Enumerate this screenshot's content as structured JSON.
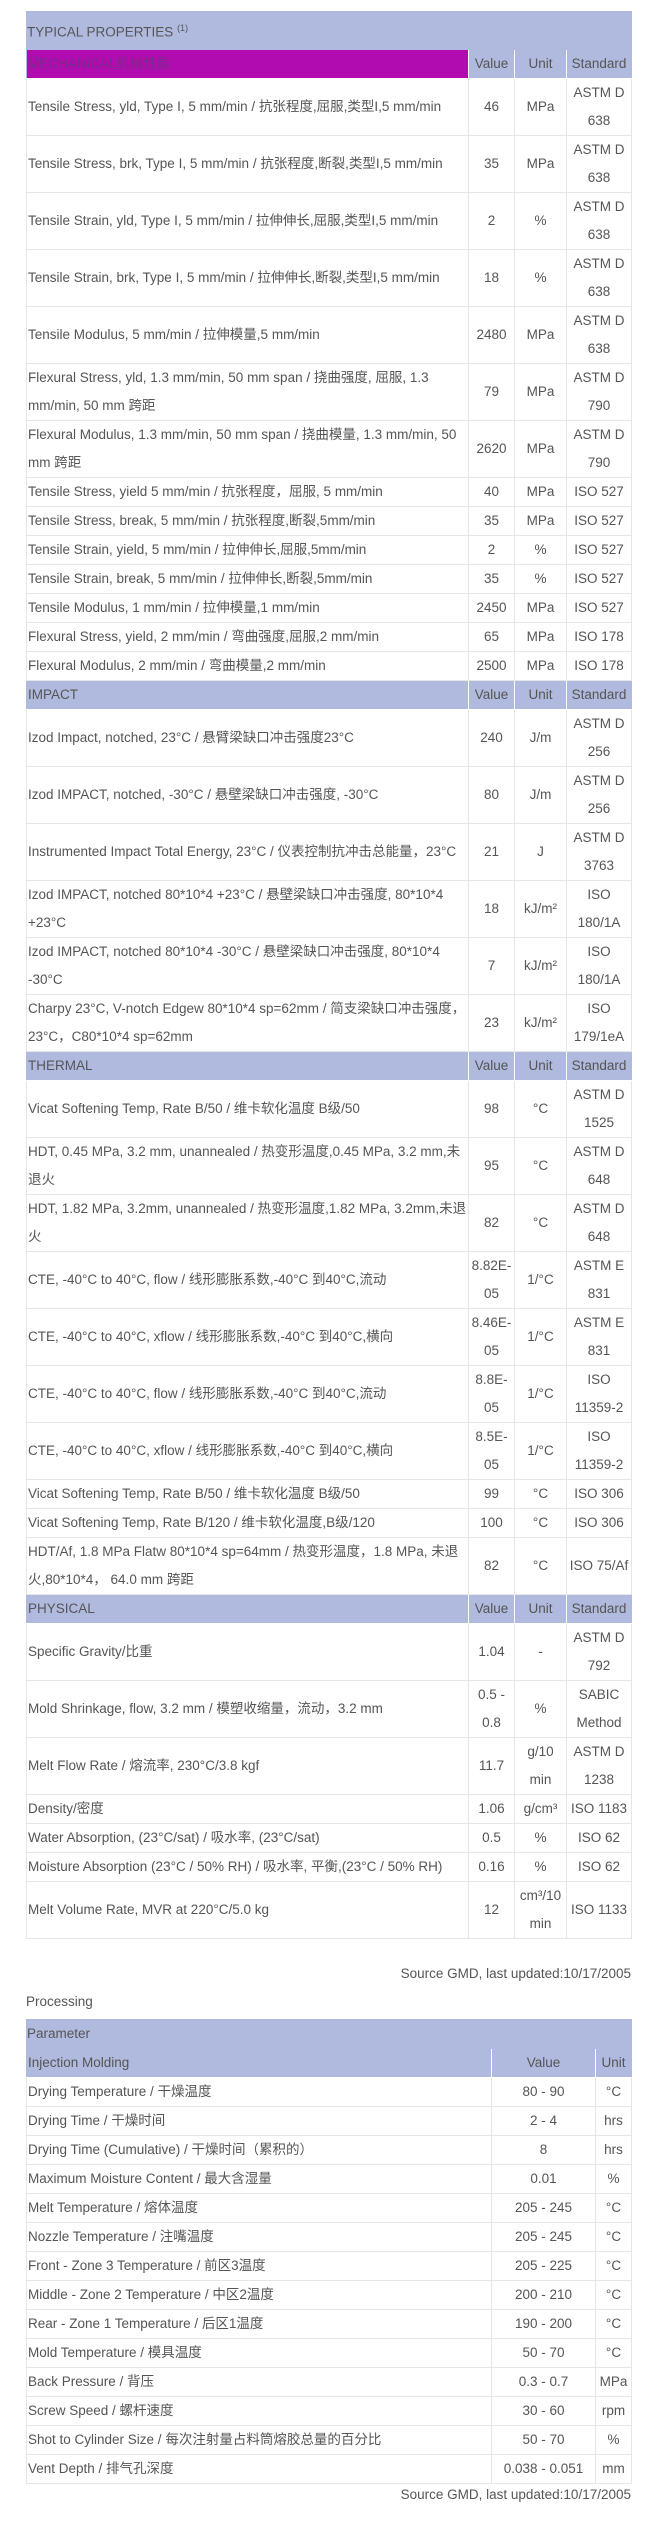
{
  "properties": {
    "title": "TYPICAL PROPERTIES",
    "title_sup": "(1)",
    "sections": [
      {
        "name": "MECHANICAL机械性能",
        "highlight": "#b10cb0",
        "col_value": "Value",
        "col_unit": "Unit",
        "col_standard": "Standard",
        "rows": [
          [
            "Tensile Stress, yld, Type I, 5 mm/min / 抗张程度,屈服,类型I,5 mm/min",
            "46",
            "MPa",
            "ASTM D 638"
          ],
          [
            "Tensile Stress, brk, Type I, 5 mm/min / 抗张程度,断裂,类型I,5 mm/min",
            "35",
            "MPa",
            "ASTM D 638"
          ],
          [
            "Tensile Strain, yld, Type I, 5 mm/min / 拉伸伸长,屈服,类型I,5 mm/min",
            "2",
            "%",
            "ASTM D 638"
          ],
          [
            "Tensile Strain, brk, Type I, 5 mm/min / 拉伸伸长,断裂,类型I,5 mm/min",
            "18",
            "%",
            "ASTM D 638"
          ],
          [
            "Tensile Modulus, 5 mm/min / 拉伸模量,5 mm/min",
            "2480",
            "MPa",
            "ASTM D 638"
          ],
          [
            "Flexural Stress, yld, 1.3 mm/min, 50 mm span / 挠曲强度, 屈服, 1.3 mm/min, 50 mm 跨距",
            "79",
            "MPa",
            "ASTM D 790"
          ],
          [
            "Flexural Modulus, 1.3 mm/min, 50 mm span / 挠曲模量, 1.3 mm/min, 50 mm 跨距",
            "2620",
            "MPa",
            "ASTM D 790"
          ],
          [
            "Tensile Stress, yield 5 mm/min / 抗张程度，屈服, 5 mm/min",
            "40",
            "MPa",
            "ISO 527"
          ],
          [
            "Tensile Stress, break, 5 mm/min / 抗张程度,断裂,5mm/min",
            "35",
            "MPa",
            "ISO 527"
          ],
          [
            "Tensile Strain, yield, 5 mm/min / 拉伸伸长,屈服,5mm/min",
            "2",
            "%",
            "ISO 527"
          ],
          [
            "Tensile Strain, break, 5 mm/min / 拉伸伸长,断裂,5mm/min",
            "35",
            "%",
            "ISO 527"
          ],
          [
            "Tensile Modulus, 1 mm/min / 拉伸模量,1 mm/min",
            "2450",
            "MPa",
            "ISO 527"
          ],
          [
            "Flexural Stress, yield, 2 mm/min / 弯曲强度,屈服,2 mm/min",
            "65",
            "MPa",
            "ISO 178"
          ],
          [
            "Flexural Modulus, 2 mm/min / 弯曲模量,2 mm/min",
            "2500",
            "MPa",
            "ISO 178"
          ]
        ]
      },
      {
        "name": "IMPACT",
        "col_value": "Value",
        "col_unit": "Unit",
        "col_standard": "Standard",
        "rows": [
          [
            "Izod Impact, notched, 23°C / 悬臂梁缺口冲击强度23°C",
            "240",
            "J/m",
            "ASTM D 256"
          ],
          [
            "Izod IMPACT, notched, -30°C / 悬壁梁缺口冲击强度, -30°C",
            "80",
            "J/m",
            "ASTM D 256"
          ],
          [
            "Instrumented Impact Total Energy, 23°C / 仪表控制抗冲击总能量，23°C",
            "21",
            "J",
            "ASTM D 3763"
          ],
          [
            "Izod IMPACT, notched 80*10*4 +23°C / 悬壁梁缺口冲击强度, 80*10*4 +23°C",
            "18",
            "kJ/m²",
            "ISO 180/1A"
          ],
          [
            "Izod IMPACT, notched 80*10*4 -30°C / 悬壁梁缺口冲击强度, 80*10*4 -30°C",
            "7",
            "kJ/m²",
            "ISO 180/1A"
          ],
          [
            "Charpy 23°C, V-notch Edgew 80*10*4 sp=62mm / 简支梁缺口冲击强度，23°C，C80*10*4 sp=62mm",
            "23",
            "kJ/m²",
            "ISO 179/1eA"
          ]
        ]
      },
      {
        "name": "THERMAL",
        "col_value": "Value",
        "col_unit": "Unit",
        "col_standard": "Standard",
        "rows": [
          [
            "Vicat Softening Temp, Rate B/50 / 维卡软化温度 B级/50",
            "98",
            "°C",
            "ASTM D 1525"
          ],
          [
            "HDT, 0.45 MPa, 3.2 mm, unannealed / 热变形温度,0.45 MPa, 3.2 mm,未退火",
            "95",
            "°C",
            "ASTM D 648"
          ],
          [
            "HDT, 1.82 MPa, 3.2mm, unannealed / 热变形温度,1.82 MPa, 3.2mm,未退火",
            "82",
            "°C",
            "ASTM D 648"
          ],
          [
            "CTE, -40°C to 40°C, flow / 线形膨胀系数,-40°C 到40°C,流动",
            "8.82E-05",
            "1/°C",
            "ASTM E 831"
          ],
          [
            "CTE, -40°C to 40°C, xflow / 线形膨胀系数,-40°C 到40°C,横向",
            "8.46E-05",
            "1/°C",
            "ASTM E 831"
          ],
          [
            "CTE, -40°C to 40°C, flow / 线形膨胀系数,-40°C 到40°C,流动",
            "8.8E-05",
            "1/°C",
            "ISO 11359-2"
          ],
          [
            "CTE, -40°C to 40°C, xflow / 线形膨胀系数,-40°C 到40°C,横向",
            "8.5E-05",
            "1/°C",
            "ISO 11359-2"
          ],
          [
            "Vicat Softening Temp, Rate B/50 / 维卡软化温度 B级/50",
            "99",
            "°C",
            "ISO 306"
          ],
          [
            "Vicat Softening Temp, Rate B/120 / 维卡软化温度,B级/120",
            "100",
            "°C",
            "ISO 306"
          ],
          [
            "HDT/Af, 1.8 MPa Flatw 80*10*4 sp=64mm / 热变形温度，1.8 MPa, 未退火,80*10*4，  64.0 mm 跨距",
            "82",
            "°C",
            "ISO 75/Af"
          ]
        ]
      },
      {
        "name": "PHYSICAL",
        "col_value": "Value",
        "col_unit": "Unit",
        "col_standard": "Standard",
        "rows": [
          [
            "Specific Gravity/比重",
            "1.04",
            "-",
            "ASTM D 792"
          ],
          [
            "Mold Shrinkage, flow, 3.2 mm / 模塑收缩量，流动，3.2 mm",
            "0.5 - 0.8",
            "%",
            "SABIC Method"
          ],
          [
            "Melt Flow Rate / 熔流率, 230°C/3.8 kgf",
            "11.7",
            "g/10 min",
            "ASTM D 1238"
          ],
          [
            "Density/密度",
            "1.06",
            "g/cm³",
            "ISO 1183"
          ],
          [
            "Water Absorption, (23°C/sat) / 吸水率, (23°C/sat)",
            "0.5",
            "%",
            "ISO 62"
          ],
          [
            "Moisture Absorption (23°C / 50% RH) / 吸水率, 平衡,(23°C / 50% RH)",
            "0.16",
            "%",
            "ISO 62"
          ],
          [
            "Melt Volume Rate, MVR at 220°C/5.0 kg",
            "12",
            "cm³/10 min",
            "ISO 1133"
          ]
        ]
      }
    ],
    "source_note": "Source GMD, last updated:10/17/2005"
  },
  "processing": {
    "label": "Processing",
    "title": "Parameter",
    "section": "Injection Molding",
    "col_value": "Value",
    "col_unit": "Unit",
    "rows": [
      [
        "Drying Temperature / 干燥温度",
        "80 - 90",
        "°C"
      ],
      [
        "Drying Time / 干燥时间",
        "2 - 4",
        "hrs"
      ],
      [
        "Drying Time (Cumulative) / 干燥时间（累积的）",
        "8",
        "hrs"
      ],
      [
        "Maximum Moisture Content / 最大含湿量",
        "0.01",
        "%"
      ],
      [
        "Melt Temperature / 熔体温度",
        "205 - 245",
        "°C"
      ],
      [
        "Nozzle Temperature / 注嘴温度",
        "205 - 245",
        "°C"
      ],
      [
        "Front - Zone 3 Temperature / 前区3温度",
        "205 - 225",
        "°C"
      ],
      [
        "Middle - Zone 2 Temperature / 中区2温度",
        "200 - 210",
        "°C"
      ],
      [
        "Rear - Zone 1 Temperature / 后区1温度",
        "190 - 200",
        "°C"
      ],
      [
        "Mold Temperature / 模具温度",
        "50 - 70",
        "°C"
      ],
      [
        "Back Pressure / 背压",
        "0.3 - 0.7",
        "MPa"
      ],
      [
        "Screw Speed / 螺杆速度",
        "30 - 60",
        "rpm"
      ],
      [
        "Shot to Cylinder Size / 每次注射量占料筒熔胶总量的百分比",
        "50 - 70",
        "%"
      ],
      [
        "Vent Depth / 排气孔深度",
        "0.038 - 0.051",
        "mm"
      ]
    ],
    "source_note": "Source GMD, last updated:10/17/2005"
  },
  "colors": {
    "header_bg": "#b0bade",
    "mechanical_bg": "#b10cb0",
    "text": "#555555",
    "border": "#2a2a2a"
  }
}
